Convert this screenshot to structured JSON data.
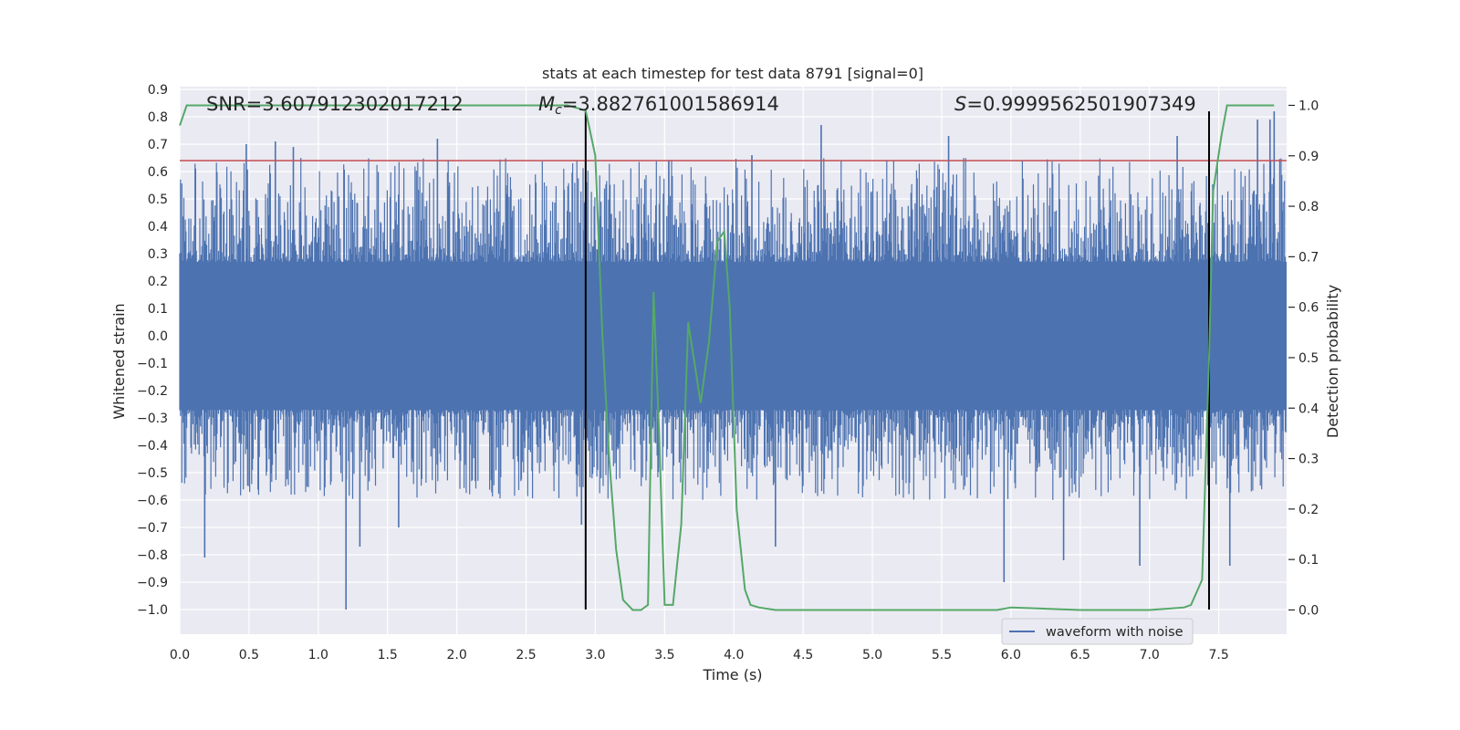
{
  "chart_data": {
    "type": "line",
    "title": "stats at each timestep for test data 8791 [signal=0]",
    "xlabel": "Time (s)",
    "ylabel": "Whitened strain",
    "y2label": "Detection probability",
    "xlim": [
      0.0,
      7.99
    ],
    "ylim": [
      -1.09,
      0.91
    ],
    "y2lim": [
      -0.048,
      1.037
    ],
    "xticks": [
      "0.0",
      "0.5",
      "1.0",
      "1.5",
      "2.0",
      "2.5",
      "3.0",
      "3.5",
      "4.0",
      "4.5",
      "5.0",
      "5.5",
      "6.0",
      "6.5",
      "7.0",
      "7.5"
    ],
    "yticks": [
      "0.9",
      "0.8",
      "0.7",
      "0.6",
      "0.5",
      "0.4",
      "0.3",
      "0.2",
      "0.1",
      "0.0",
      "−0.1",
      "−0.2",
      "−0.3",
      "−0.4",
      "−0.5",
      "−0.6",
      "−0.7",
      "−0.8",
      "−0.9",
      "−1.0"
    ],
    "y2ticks": [
      "1.0",
      "0.9",
      "0.8",
      "0.7",
      "0.6",
      "0.5",
      "0.4",
      "0.3",
      "0.2",
      "0.1",
      "0.0"
    ],
    "annotations": {
      "snr": "SNR=3.607912302017212",
      "mc_symbol": "M",
      "mc_sub": "c",
      "mc_value": "=3.882761001586914",
      "s_symbol": "S",
      "s_value": "=0.9999562501907349"
    },
    "threshold": {
      "value": 0.9,
      "axis": "y2",
      "color": "#c44e52"
    },
    "vlines": [
      {
        "x": 2.93,
        "y": [
          -1.0,
          0.82
        ],
        "color": "#000000"
      },
      {
        "x": 7.43,
        "y": [
          -1.0,
          0.82
        ],
        "color": "#000000"
      }
    ],
    "series": [
      {
        "name": "waveform with noise",
        "axis": "y",
        "color": "#4c72b0",
        "envelope": {
          "core_max": 0.27,
          "core_min": -0.27,
          "typical_peak_max": 0.65,
          "typical_peak_min": -0.6,
          "spikes": [
            [
              0.18,
              -0.81
            ],
            [
              0.48,
              0.7
            ],
            [
              0.69,
              0.71
            ],
            [
              0.82,
              0.69
            ],
            [
              1.2,
              -1.0
            ],
            [
              1.3,
              -0.77
            ],
            [
              1.58,
              -0.7
            ],
            [
              1.86,
              0.72
            ],
            [
              2.9,
              -0.69
            ],
            [
              3.53,
              0.64
            ],
            [
              4.13,
              0.66
            ],
            [
              4.3,
              -0.77
            ],
            [
              4.63,
              0.77
            ],
            [
              5.55,
              0.73
            ],
            [
              5.95,
              -0.9
            ],
            [
              6.38,
              -0.82
            ],
            [
              6.93,
              -0.84
            ],
            [
              7.2,
              0.73
            ],
            [
              7.58,
              -0.84
            ],
            [
              7.78,
              0.79
            ],
            [
              7.87,
              0.79
            ],
            [
              7.9,
              0.82
            ]
          ]
        }
      },
      {
        "name": "detection probability",
        "axis": "y2",
        "color": "#55a868",
        "x": [
          0.0,
          0.05,
          0.1,
          0.5,
          1.0,
          1.5,
          2.0,
          2.5,
          2.8,
          2.93,
          3.0,
          3.05,
          3.1,
          3.15,
          3.2,
          3.27,
          3.33,
          3.38,
          3.42,
          3.46,
          3.5,
          3.56,
          3.62,
          3.67,
          3.71,
          3.76,
          3.82,
          3.88,
          3.93,
          3.97,
          4.02,
          4.08,
          4.12,
          4.18,
          4.3,
          4.5,
          5.0,
          5.5,
          5.9,
          6.0,
          6.5,
          7.0,
          7.25,
          7.3,
          7.38,
          7.43,
          7.46,
          7.52,
          7.56,
          7.6,
          7.7,
          7.8,
          7.9
        ],
        "values": [
          0.96,
          1.0,
          1.0,
          1.0,
          1.0,
          1.0,
          1.0,
          1.0,
          1.0,
          0.99,
          0.9,
          0.55,
          0.3,
          0.12,
          0.02,
          0.0,
          0.0,
          0.01,
          0.63,
          0.35,
          0.01,
          0.01,
          0.17,
          0.57,
          0.5,
          0.41,
          0.53,
          0.73,
          0.75,
          0.6,
          0.2,
          0.04,
          0.01,
          0.005,
          0.0,
          0.0,
          0.0,
          0.0,
          0.0,
          0.005,
          0.0,
          0.0,
          0.005,
          0.01,
          0.06,
          0.5,
          0.83,
          0.94,
          1.0,
          1.0,
          1.0,
          1.0,
          1.0
        ]
      }
    ],
    "legend": {
      "location": "lower-right",
      "entries": [
        "waveform with noise"
      ]
    }
  }
}
